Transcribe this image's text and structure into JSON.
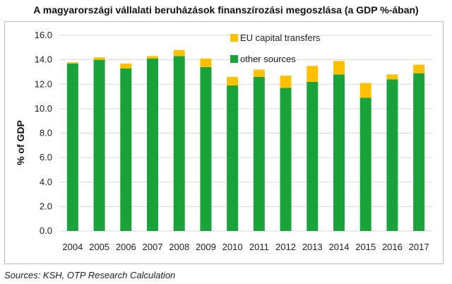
{
  "chart_data": {
    "type": "bar",
    "stacked": true,
    "title": "A magyarországi vállalati beruházások finanszírozási megoszlása (a GDP %-ában)",
    "xlabel": "",
    "ylabel": "% of GDP",
    "ylim": [
      0,
      16
    ],
    "yticks": [
      "0.0",
      "2.0",
      "4.0",
      "6.0",
      "8.0",
      "10.0",
      "12.0",
      "14.0",
      "16.0"
    ],
    "grid": true,
    "legend_position": "top-right",
    "categories": [
      "2004",
      "2005",
      "2006",
      "2007",
      "2008",
      "2009",
      "2010",
      "2011",
      "2012",
      "2013",
      "2014",
      "2015",
      "2016",
      "2017"
    ],
    "series": [
      {
        "name": "other sources",
        "color": "#1aa33a",
        "values": [
          13.7,
          14.0,
          13.3,
          14.1,
          14.3,
          13.4,
          11.9,
          12.6,
          11.7,
          12.2,
          12.8,
          10.9,
          12.4,
          12.9
        ]
      },
      {
        "name": "EU capital transfers",
        "color": "#ffc000",
        "values": [
          0.1,
          0.2,
          0.4,
          0.2,
          0.5,
          0.7,
          0.7,
          0.6,
          1.0,
          1.3,
          1.1,
          1.2,
          0.4,
          0.7
        ]
      }
    ]
  },
  "source_note": "Sources: KSH, OTP Research Calculation"
}
